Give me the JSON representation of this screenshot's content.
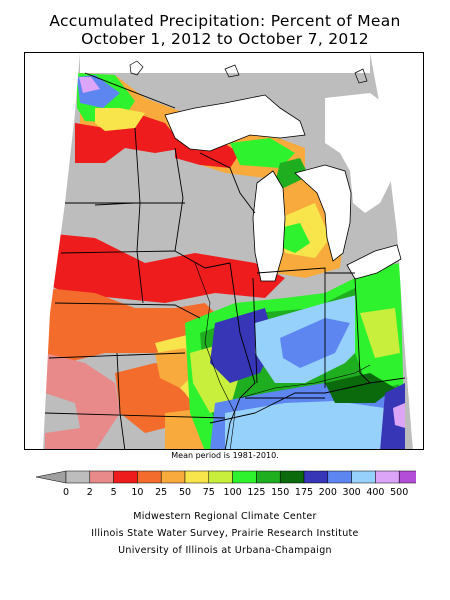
{
  "title": {
    "line1": "Accumulated Precipitation: Percent of Mean",
    "line2": "October 1, 2012 to October 7, 2012"
  },
  "note": "Mean period is 1981-2010.",
  "legend": {
    "labels": [
      "0",
      "2",
      "5",
      "10",
      "25",
      "50",
      "75",
      "100",
      "125",
      "150",
      "175",
      "200",
      "300",
      "400",
      "500"
    ],
    "colors": [
      "#bdbdbd",
      "#e98a8a",
      "#ee1c1c",
      "#f36c2c",
      "#f8ab3c",
      "#f8e54c",
      "#c8ef3c",
      "#2ef22e",
      "#1fae1f",
      "#0b6a0b",
      "#3636b6",
      "#5e86f0",
      "#96d1fb",
      "#dca5f7",
      "#b24ed8"
    ],
    "arrow_color": "#a0a0a0"
  },
  "credits": {
    "line1": "Midwestern Regional Climate Center",
    "line2": "Illinois State Water Survey, Prairie Research Institute",
    "line3": "University of Illinois at Urbana-Champaign"
  }
}
